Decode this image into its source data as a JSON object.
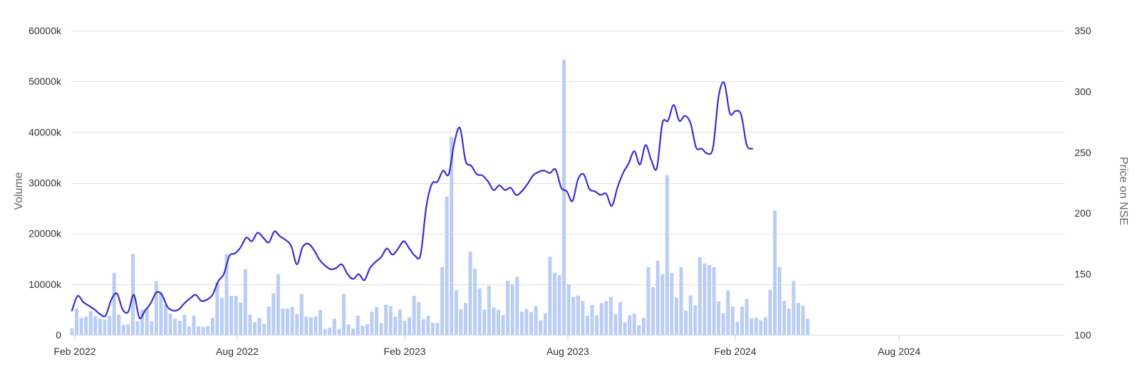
{
  "chart_data": {
    "type": "bar+line",
    "ylabel_left": "Volume",
    "ylabel_right": "Price on NSE",
    "left_axis": {
      "ticks": [
        "0",
        "10000k",
        "20000k",
        "30000k",
        "40000k",
        "50000k",
        "60000k"
      ],
      "range": [
        0,
        60000
      ]
    },
    "right_axis": {
      "ticks": [
        "100",
        "150",
        "200",
        "250",
        "300",
        "350"
      ],
      "range": [
        100,
        350
      ]
    },
    "x_axis": {
      "labels": [
        "Feb 2022",
        "Aug 2022",
        "Feb 2023",
        "Aug 2023",
        "Feb 2024",
        "Aug 2024"
      ]
    },
    "x_range": [
      "2022-02-01",
      "2024-12-26"
    ],
    "grid": true,
    "colors": {
      "bars": "#b9cdf5",
      "line": "#3b2ed0",
      "grid": "#e0e0e0"
    },
    "volume_series": {
      "name": "Volume",
      "unit": "thousand shares",
      "points": [
        [
          "2022-02-01",
          1300
        ],
        [
          "2022-02-06",
          5200
        ],
        [
          "2022-02-11",
          3300
        ],
        [
          "2022-02-16",
          3600
        ],
        [
          "2022-02-21",
          4700
        ],
        [
          "2022-02-26",
          3700
        ],
        [
          "2022-03-03",
          3200
        ],
        [
          "2022-03-08",
          3000
        ],
        [
          "2022-03-13",
          3800
        ],
        [
          "2022-03-18",
          12200
        ],
        [
          "2022-03-23",
          4000
        ],
        [
          "2022-03-28",
          2000
        ],
        [
          "2022-04-02",
          2100
        ],
        [
          "2022-04-07",
          16000
        ],
        [
          "2022-04-12",
          2700
        ],
        [
          "2022-04-17",
          5000
        ],
        [
          "2022-04-22",
          5200
        ],
        [
          "2022-04-27",
          2700
        ],
        [
          "2022-05-02",
          10600
        ],
        [
          "2022-05-07",
          8500
        ],
        [
          "2022-05-12",
          6000
        ],
        [
          "2022-05-17",
          4200
        ],
        [
          "2022-05-22",
          3200
        ],
        [
          "2022-05-27",
          2800
        ],
        [
          "2022-06-01",
          4000
        ],
        [
          "2022-06-06",
          1700
        ],
        [
          "2022-06-11",
          3800
        ],
        [
          "2022-06-16",
          1700
        ],
        [
          "2022-06-21",
          1600
        ],
        [
          "2022-06-26",
          1800
        ],
        [
          "2022-07-01",
          3400
        ],
        [
          "2022-07-06",
          10400
        ],
        [
          "2022-07-11",
          7300
        ],
        [
          "2022-07-16",
          15900
        ],
        [
          "2022-07-21",
          7700
        ],
        [
          "2022-07-26",
          7700
        ],
        [
          "2022-07-31",
          6400
        ],
        [
          "2022-08-05",
          13000
        ],
        [
          "2022-08-10",
          4000
        ],
        [
          "2022-08-15",
          2500
        ],
        [
          "2022-08-20",
          3400
        ],
        [
          "2022-08-25",
          2200
        ],
        [
          "2022-08-30",
          5600
        ],
        [
          "2022-09-04",
          8200
        ],
        [
          "2022-09-09",
          12000
        ],
        [
          "2022-09-14",
          5200
        ],
        [
          "2022-09-19",
          5200
        ],
        [
          "2022-09-24",
          5500
        ],
        [
          "2022-09-29",
          4100
        ],
        [
          "2022-10-04",
          8100
        ],
        [
          "2022-10-09",
          3600
        ],
        [
          "2022-10-14",
          3500
        ],
        [
          "2022-10-19",
          3700
        ],
        [
          "2022-10-24",
          4900
        ],
        [
          "2022-10-29",
          1200
        ],
        [
          "2022-11-03",
          1400
        ],
        [
          "2022-11-08",
          3200
        ],
        [
          "2022-11-13",
          1200
        ],
        [
          "2022-11-18",
          8100
        ],
        [
          "2022-11-23",
          2100
        ],
        [
          "2022-11-28",
          1300
        ],
        [
          "2022-12-03",
          3800
        ],
        [
          "2022-12-08",
          1800
        ],
        [
          "2022-12-13",
          2100
        ],
        [
          "2022-12-18",
          4600
        ],
        [
          "2022-12-23",
          5500
        ],
        [
          "2022-12-28",
          2300
        ],
        [
          "2023-01-02",
          6000
        ],
        [
          "2023-01-07",
          5700
        ],
        [
          "2023-01-12",
          3600
        ],
        [
          "2023-01-17",
          5000
        ],
        [
          "2023-01-22",
          2800
        ],
        [
          "2023-01-27",
          3500
        ],
        [
          "2023-02-01",
          7700
        ],
        [
          "2023-02-06",
          6500
        ],
        [
          "2023-02-11",
          3100
        ],
        [
          "2023-02-16",
          3800
        ],
        [
          "2023-02-21",
          2400
        ],
        [
          "2023-02-26",
          2400
        ],
        [
          "2023-03-03",
          13400
        ],
        [
          "2023-03-08",
          27300
        ],
        [
          "2023-03-13",
          39000
        ],
        [
          "2023-03-18",
          8800
        ],
        [
          "2023-03-23",
          5100
        ],
        [
          "2023-03-28",
          6300
        ],
        [
          "2023-04-02",
          16400
        ],
        [
          "2023-04-07",
          13100
        ],
        [
          "2023-04-12",
          9200
        ],
        [
          "2023-04-17",
          5000
        ],
        [
          "2023-04-22",
          9700
        ],
        [
          "2023-04-27",
          5400
        ],
        [
          "2023-05-02",
          5000
        ],
        [
          "2023-05-07",
          3900
        ],
        [
          "2023-05-12",
          10700
        ],
        [
          "2023-05-17",
          10000
        ],
        [
          "2023-05-22",
          11500
        ],
        [
          "2023-05-27",
          4600
        ],
        [
          "2023-06-01",
          5100
        ],
        [
          "2023-06-06",
          4500
        ],
        [
          "2023-06-11",
          5700
        ],
        [
          "2023-06-16",
          2900
        ],
        [
          "2023-06-21",
          4300
        ],
        [
          "2023-06-26",
          15400
        ],
        [
          "2023-07-01",
          12300
        ],
        [
          "2023-07-06",
          11800
        ],
        [
          "2023-07-11",
          54300
        ],
        [
          "2023-07-16",
          10000
        ],
        [
          "2023-07-21",
          7500
        ],
        [
          "2023-07-26",
          7800
        ],
        [
          "2023-07-31",
          6700
        ],
        [
          "2023-08-05",
          3800
        ],
        [
          "2023-08-10",
          5900
        ],
        [
          "2023-08-15",
          3900
        ],
        [
          "2023-08-20",
          6300
        ],
        [
          "2023-08-25",
          6700
        ],
        [
          "2023-08-30",
          7500
        ],
        [
          "2023-09-04",
          4100
        ],
        [
          "2023-09-09",
          6500
        ],
        [
          "2023-09-14",
          2500
        ],
        [
          "2023-09-19",
          3900
        ],
        [
          "2023-09-24",
          4200
        ],
        [
          "2023-09-29",
          1900
        ],
        [
          "2023-10-04",
          3400
        ],
        [
          "2023-10-09",
          13400
        ],
        [
          "2023-10-14",
          9400
        ],
        [
          "2023-10-19",
          14600
        ],
        [
          "2023-10-24",
          12000
        ],
        [
          "2023-10-29",
          31500
        ],
        [
          "2023-11-03",
          12200
        ],
        [
          "2023-11-08",
          7400
        ],
        [
          "2023-11-13",
          13400
        ],
        [
          "2023-11-18",
          4800
        ],
        [
          "2023-11-23",
          7800
        ],
        [
          "2023-11-28",
          5800
        ],
        [
          "2023-12-03",
          15300
        ],
        [
          "2023-12-08",
          14100
        ],
        [
          "2023-12-13",
          13800
        ],
        [
          "2023-12-18",
          13400
        ],
        [
          "2023-12-23",
          6600
        ],
        [
          "2023-12-28",
          4300
        ],
        [
          "2024-01-02",
          8800
        ],
        [
          "2024-01-07",
          5600
        ],
        [
          "2024-01-12",
          2600
        ],
        [
          "2024-01-17",
          5600
        ],
        [
          "2024-01-22",
          7100
        ],
        [
          "2024-01-27",
          3300
        ],
        [
          "2024-02-01",
          3400
        ],
        [
          "2024-02-06",
          2900
        ],
        [
          "2024-02-11",
          3500
        ],
        [
          "2024-02-16",
          8900
        ],
        [
          "2024-02-21",
          24500
        ],
        [
          "2024-02-26",
          13400
        ],
        [
          "2024-03-02",
          6700
        ],
        [
          "2024-03-07",
          5200
        ],
        [
          "2024-03-12",
          10600
        ],
        [
          "2024-03-17",
          6300
        ],
        [
          "2024-03-22",
          5800
        ],
        [
          "2024-03-27",
          3200
        ]
      ]
    },
    "price_series": {
      "name": "Price on NSE",
      "points": [
        [
          "2022-02-01",
          120
        ],
        [
          "2022-02-07",
          132
        ],
        [
          "2022-02-13",
          127
        ],
        [
          "2022-02-19",
          124
        ],
        [
          "2022-02-25",
          121
        ],
        [
          "2022-03-03",
          117
        ],
        [
          "2022-03-09",
          116
        ],
        [
          "2022-03-15",
          129
        ],
        [
          "2022-03-21",
          134
        ],
        [
          "2022-03-27",
          121
        ],
        [
          "2022-04-02",
          119
        ],
        [
          "2022-04-08",
          133
        ],
        [
          "2022-04-14",
          114
        ],
        [
          "2022-04-20",
          120
        ],
        [
          "2022-04-26",
          126
        ],
        [
          "2022-05-02",
          135
        ],
        [
          "2022-05-08",
          133
        ],
        [
          "2022-05-14",
          123
        ],
        [
          "2022-05-20",
          120
        ],
        [
          "2022-05-26",
          121
        ],
        [
          "2022-06-01",
          126
        ],
        [
          "2022-06-07",
          130
        ],
        [
          "2022-06-13",
          133
        ],
        [
          "2022-06-19",
          128
        ],
        [
          "2022-06-25",
          129
        ],
        [
          "2022-07-01",
          133
        ],
        [
          "2022-07-07",
          144
        ],
        [
          "2022-07-13",
          150
        ],
        [
          "2022-07-19",
          165
        ],
        [
          "2022-07-25",
          167
        ],
        [
          "2022-07-31",
          172
        ],
        [
          "2022-08-06",
          180
        ],
        [
          "2022-08-12",
          177
        ],
        [
          "2022-08-18",
          184
        ],
        [
          "2022-08-24",
          180
        ],
        [
          "2022-08-30",
          176
        ],
        [
          "2022-09-05",
          185
        ],
        [
          "2022-09-11",
          181
        ],
        [
          "2022-09-17",
          178
        ],
        [
          "2022-09-23",
          173
        ],
        [
          "2022-09-29",
          158
        ],
        [
          "2022-10-05",
          172
        ],
        [
          "2022-10-11",
          175
        ],
        [
          "2022-10-17",
          170
        ],
        [
          "2022-10-23",
          162
        ],
        [
          "2022-10-29",
          157
        ],
        [
          "2022-11-04",
          154
        ],
        [
          "2022-11-10",
          155
        ],
        [
          "2022-11-16",
          158
        ],
        [
          "2022-11-22",
          150
        ],
        [
          "2022-11-28",
          146
        ],
        [
          "2022-12-04",
          150
        ],
        [
          "2022-12-10",
          145
        ],
        [
          "2022-12-16",
          155
        ],
        [
          "2022-12-22",
          160
        ],
        [
          "2022-12-28",
          164
        ],
        [
          "2023-01-03",
          171
        ],
        [
          "2023-01-09",
          166
        ],
        [
          "2023-01-15",
          171
        ],
        [
          "2023-01-21",
          177
        ],
        [
          "2023-01-27",
          171
        ],
        [
          "2023-02-02",
          165
        ],
        [
          "2023-02-08",
          166
        ],
        [
          "2023-02-14",
          205
        ],
        [
          "2023-02-20",
          224
        ],
        [
          "2023-02-26",
          226
        ],
        [
          "2023-03-04",
          235
        ],
        [
          "2023-03-10",
          232
        ],
        [
          "2023-03-16",
          258
        ],
        [
          "2023-03-22",
          270
        ],
        [
          "2023-03-28",
          243
        ],
        [
          "2023-04-03",
          239
        ],
        [
          "2023-04-09",
          232
        ],
        [
          "2023-04-15",
          231
        ],
        [
          "2023-04-21",
          226
        ],
        [
          "2023-04-27",
          219
        ],
        [
          "2023-05-03",
          223
        ],
        [
          "2023-05-09",
          219
        ],
        [
          "2023-05-15",
          221
        ],
        [
          "2023-05-21",
          215
        ],
        [
          "2023-05-27",
          218
        ],
        [
          "2023-06-02",
          224
        ],
        [
          "2023-06-08",
          231
        ],
        [
          "2023-06-14",
          234
        ],
        [
          "2023-06-20",
          235
        ],
        [
          "2023-06-26",
          233
        ],
        [
          "2023-07-02",
          236
        ],
        [
          "2023-07-08",
          221
        ],
        [
          "2023-07-14",
          218
        ],
        [
          "2023-07-20",
          210
        ],
        [
          "2023-07-26",
          228
        ],
        [
          "2023-08-01",
          232
        ],
        [
          "2023-08-07",
          220
        ],
        [
          "2023-08-13",
          218
        ],
        [
          "2023-08-19",
          215
        ],
        [
          "2023-08-25",
          216
        ],
        [
          "2023-08-31",
          206
        ],
        [
          "2023-09-06",
          221
        ],
        [
          "2023-09-12",
          233
        ],
        [
          "2023-09-18",
          241
        ],
        [
          "2023-09-24",
          251
        ],
        [
          "2023-09-30",
          240
        ],
        [
          "2023-10-06",
          256
        ],
        [
          "2023-10-12",
          244
        ],
        [
          "2023-10-18",
          237
        ],
        [
          "2023-10-24",
          274
        ],
        [
          "2023-10-30",
          276
        ],
        [
          "2023-11-05",
          289
        ],
        [
          "2023-11-11",
          276
        ],
        [
          "2023-11-17",
          280
        ],
        [
          "2023-11-23",
          274
        ],
        [
          "2023-11-29",
          254
        ],
        [
          "2023-12-05",
          253
        ],
        [
          "2023-12-11",
          249
        ],
        [
          "2023-12-17",
          254
        ],
        [
          "2023-12-23",
          296
        ],
        [
          "2023-12-29",
          307
        ],
        [
          "2024-01-04",
          282
        ],
        [
          "2024-01-10",
          284
        ],
        [
          "2024-01-16",
          281
        ],
        [
          "2024-01-22",
          256
        ],
        [
          "2024-01-28",
          253
        ]
      ]
    }
  }
}
